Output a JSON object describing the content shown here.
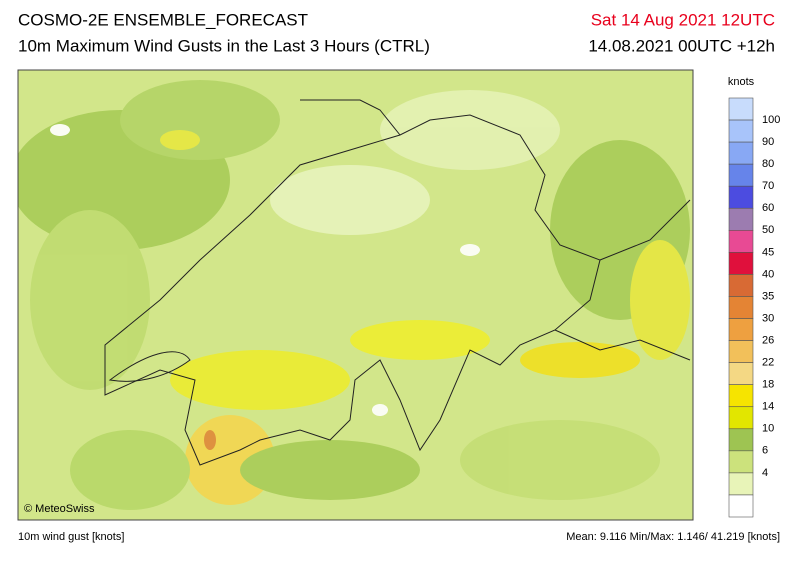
{
  "header": {
    "title": "COSMO-2E ENSEMBLE_FORECAST",
    "subtitle": "10m Maximum Wind Gusts in the Last 3 Hours (CTRL)",
    "valid_time": "Sat 14 Aug 2021 12UTC",
    "run_time": "14.08.2021 00UTC +12h"
  },
  "map": {
    "credit": "© MeteoSwiss"
  },
  "legend": {
    "title": "knots",
    "labels": [
      "100",
      "90",
      "80",
      "70",
      "60",
      "50",
      "45",
      "40",
      "35",
      "30",
      "26",
      "22",
      "18",
      "14",
      "10",
      "6",
      "4"
    ],
    "colors": [
      "#c8dcfc",
      "#a8c4fa",
      "#88a8f4",
      "#6684ea",
      "#4c4ce0",
      "#9c7cb0",
      "#e84a94",
      "#e0103c",
      "#d86a34",
      "#e48434",
      "#eea040",
      "#f2c05a",
      "#f4d884",
      "#f6e400",
      "#e2e600",
      "#9ec452",
      "#cce27c",
      "#e8f4b8",
      "#ffffff"
    ]
  },
  "footer": {
    "left": "10m wind gust [knots]",
    "right": "Mean:  9.116 Min/Max:  1.146/ 41.219 [knots]"
  }
}
